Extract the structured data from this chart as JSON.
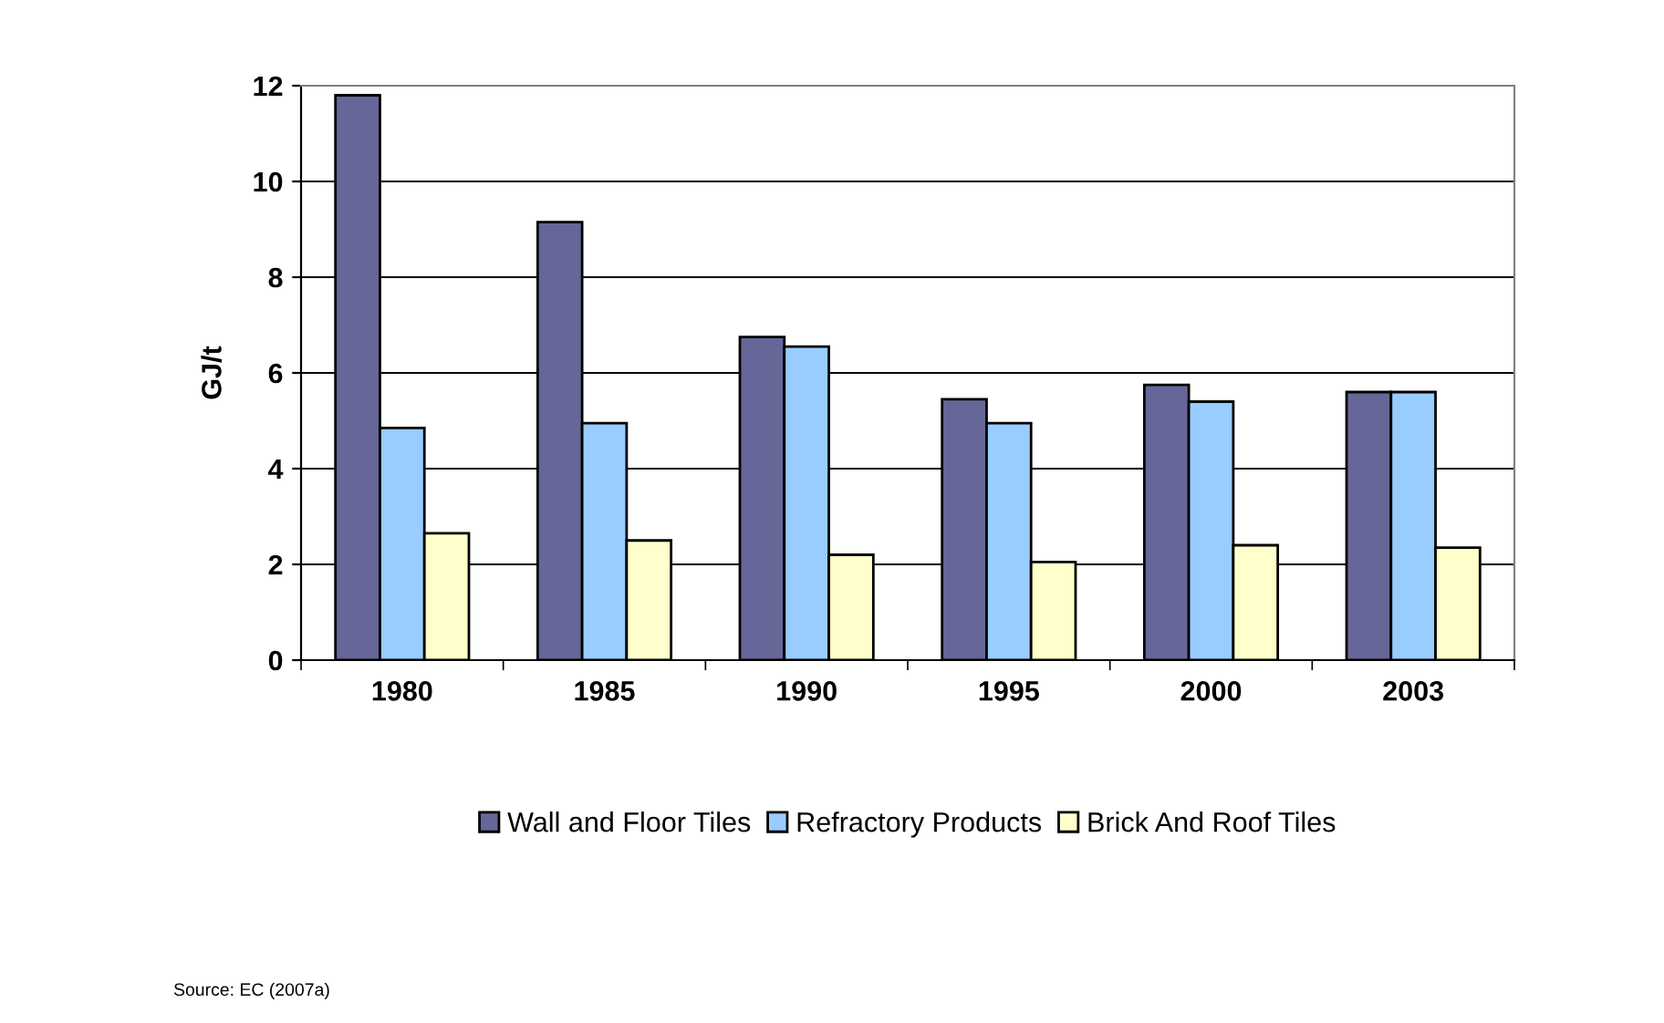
{
  "chart_data": {
    "type": "bar",
    "ylabel": "GJ/t",
    "categories": [
      "1980",
      "1985",
      "1990",
      "1995",
      "2000",
      "2003"
    ],
    "series": [
      {
        "name": "Wall and Floor Tiles",
        "color": "#666699",
        "values": [
          11.8,
          9.15,
          6.75,
          5.45,
          5.75,
          5.6
        ]
      },
      {
        "name": "Refractory Products",
        "color": "#99ccff",
        "values": [
          4.85,
          4.95,
          6.55,
          4.95,
          5.4,
          5.6
        ]
      },
      {
        "name": "Brick And Roof Tiles",
        "color": "#ffffcc",
        "values": [
          2.65,
          2.5,
          2.2,
          2.05,
          2.4,
          2.35
        ]
      }
    ],
    "ylim": [
      0,
      12
    ],
    "yticks": [
      0,
      2,
      4,
      6,
      8,
      10,
      12
    ],
    "grid": "y",
    "legend": "bottom",
    "annotations": [
      "Source: EC (2007a)"
    ]
  }
}
